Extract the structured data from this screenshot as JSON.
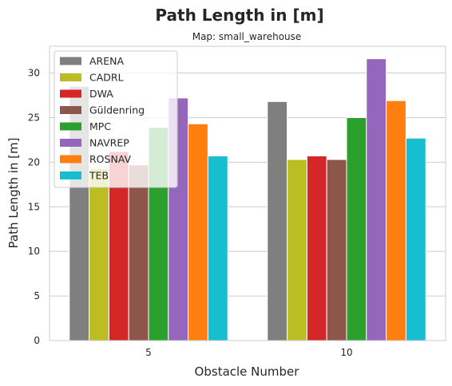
{
  "chart_data": {
    "type": "bar",
    "title": "Path Length in [m]",
    "subtitle": "Map: small_warehouse",
    "xlabel": "Obstacle Number",
    "ylabel": "Path Length in [m]",
    "categories": [
      "5",
      "10"
    ],
    "ylim": [
      0,
      33
    ],
    "yticks": [
      "0",
      "5",
      "10",
      "15",
      "20",
      "25",
      "30"
    ],
    "grid": true,
    "legend_position": "top-left",
    "series": [
      {
        "name": "ARENA",
        "color": "#7f7f7f",
        "values": [
          28.5,
          26.8
        ]
      },
      {
        "name": "CADRL",
        "color": "#bcbd22",
        "values": [
          19.3,
          20.3
        ]
      },
      {
        "name": "DWA",
        "color": "#d62728",
        "values": [
          21.2,
          20.7
        ]
      },
      {
        "name": "Güldenring",
        "color": "#8c564b",
        "values": [
          19.7,
          20.3
        ]
      },
      {
        "name": "MPC",
        "color": "#2ca02c",
        "values": [
          23.9,
          25.0
        ]
      },
      {
        "name": "NAVREP",
        "color": "#9467bd",
        "values": [
          27.2,
          31.6
        ]
      },
      {
        "name": "ROSNAV",
        "color": "#ff7f0e",
        "values": [
          24.3,
          26.9
        ]
      },
      {
        "name": "TEB",
        "color": "#17becf",
        "values": [
          20.7,
          22.7
        ]
      }
    ]
  }
}
